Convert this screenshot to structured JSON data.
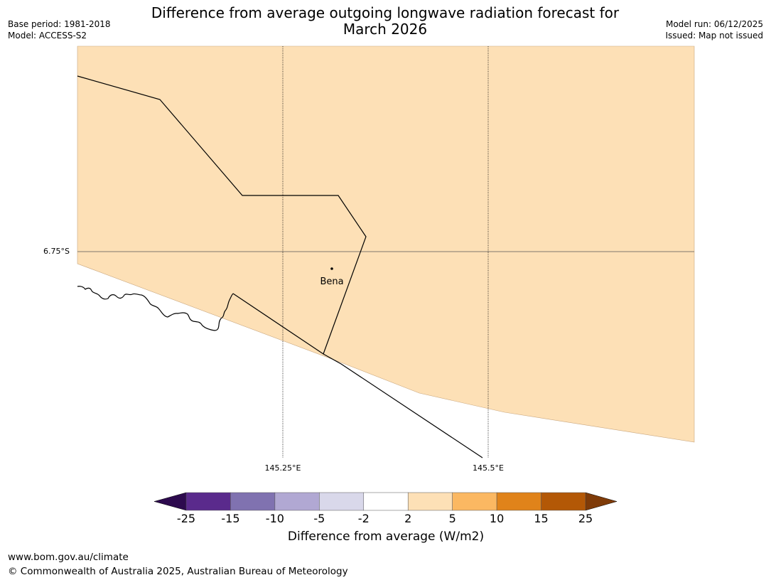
{
  "header": {
    "title_line1": "Difference from average outgoing longwave radiation forecast for",
    "title_line2": "March 2026",
    "base_period": "Base period: 1981-2018",
    "model": "Model: ACCESS-S2",
    "model_run": "Model run: 06/12/2025",
    "issued": "Issued: Map not issued"
  },
  "map": {
    "fill_color": "#fde0b6",
    "gridlines": {
      "latitude_label": "6.75°S",
      "longitude_labels": [
        "145.25°E",
        "145.5°E"
      ]
    },
    "town": {
      "name": "Bena"
    }
  },
  "colorbar": {
    "title": "Difference from average (W/m2)",
    "tick_labels": [
      "-25",
      "-15",
      "-10",
      "-5",
      "-2",
      "2",
      "5",
      "10",
      "15",
      "25"
    ],
    "colors": {
      "below_min": "#2d0a4e",
      "bins": [
        "#5a2a8c",
        "#8072b0",
        "#b1a8d3",
        "#d9d8ea",
        "#ffffff",
        "#fde0b6",
        "#fbb862",
        "#e0831a",
        "#b35806"
      ],
      "above_max": "#7f3b08"
    }
  },
  "footer": {
    "url": "www.bom.gov.au/climate",
    "copyright": "© Commonwealth of Australia 2025, Australian Bureau of Meteorology"
  }
}
